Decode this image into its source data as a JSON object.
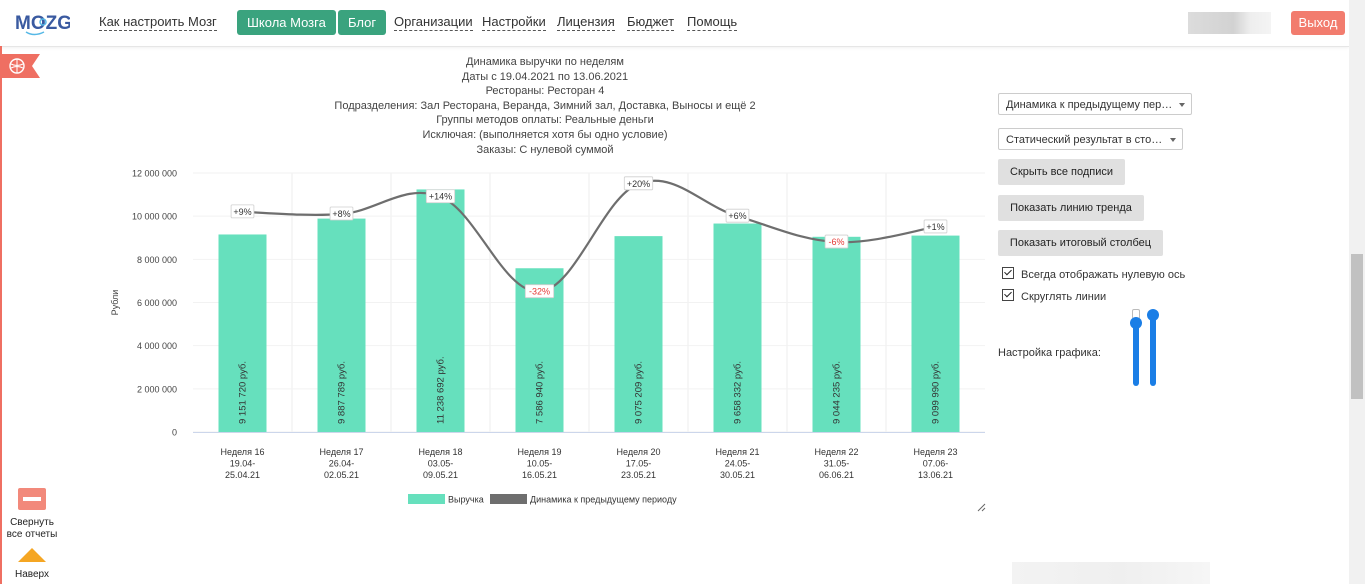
{
  "app": {
    "logo": "MOZG"
  },
  "nav": {
    "how_to": "Как настроить Мозг",
    "school": "Школа Мозга",
    "blog": "Блог",
    "links": [
      "Организации",
      "Настройки",
      "Лицензия",
      "Бюджет",
      "Помощь"
    ],
    "logout": "Выход"
  },
  "chart_header": {
    "lines": [
      "Динамика выручки по неделям",
      "Даты с 19.04.2021 по 13.06.2021",
      "Рестораны: Ресторан 4",
      "Подразделения: Зал Ресторана, Веранда, Зимний зал, Доставка, Выносы и ещё 2",
      "Группы методов оплаты: Реальные деньги",
      "Исключая: (выполняется хотя бы одно условие)",
      "Заказы: С нулевой суммой"
    ]
  },
  "chart_data": {
    "type": "bar",
    "title": "Динамика выручки по неделям",
    "ylabel": "Рубли",
    "ylim": [
      0,
      12000000
    ],
    "yticks": [
      0,
      2000000,
      4000000,
      6000000,
      8000000,
      10000000,
      12000000
    ],
    "ytick_labels": [
      "0",
      "2 000 000",
      "4 000 000",
      "6 000 000",
      "8 000 000",
      "10 000 000",
      "12 000 000"
    ],
    "categories": [
      [
        "Неделя 16",
        "19.04-",
        "25.04.21"
      ],
      [
        "Неделя 17",
        "26.04-",
        "02.05.21"
      ],
      [
        "Неделя 18",
        "03.05-",
        "09.05.21"
      ],
      [
        "Неделя 19",
        "10.05-",
        "16.05.21"
      ],
      [
        "Неделя 20",
        "17.05-",
        "23.05.21"
      ],
      [
        "Неделя 21",
        "24.05-",
        "30.05.21"
      ],
      [
        "Неделя 22",
        "31.05-",
        "06.06.21"
      ],
      [
        "Неделя 23",
        "07.06-",
        "13.06.21"
      ]
    ],
    "series": [
      {
        "name": "Выручка",
        "color": "#66e0bd",
        "values": [
          9151720,
          9887789,
          11238692,
          7586940,
          9075209,
          9658332,
          9044235,
          9099990
        ],
        "labels": [
          "9 151 720 руб.",
          "9 887 789 руб.",
          "11 238 692 руб.",
          "7 586 940 руб.",
          "9 075 209 руб.",
          "9 658 332 руб.",
          "9 044 235 руб.",
          "9 099 990 руб."
        ]
      },
      {
        "name": "Динамика к предыдущему периоду",
        "color": "#6e6e6e",
        "values": [
          10200000,
          10100000,
          10900000,
          6500000,
          11500000,
          10000000,
          8800000,
          9500000
        ],
        "labels": [
          "+9%",
          "+8%",
          "+14%",
          "-32%",
          "+20%",
          "+6%",
          "-6%",
          "+1%"
        ]
      }
    ],
    "legend": "bottom",
    "grid": true
  },
  "panel": {
    "select1": "Динамика к предыдущему пер…",
    "select2": "Статический результат в сто…",
    "btn_hide_labels": "Скрыть все подписи",
    "btn_trend": "Показать линию тренда",
    "btn_total": "Показать итоговый столбец",
    "chk_zero_axis": "Всегда отображать нулевую ось",
    "chk_round": "Скруглять линии",
    "settings_label": "Настройка графика:"
  },
  "left": {
    "collapse_line1": "Свернуть",
    "collapse_line2": "все отчеты",
    "up": "Наверх"
  },
  "colors": {
    "accent": "#3aa37e",
    "logout": "#f27c6e",
    "bar": "#66e0bd",
    "line": "#6e6e6e",
    "negative": "#e53935"
  }
}
